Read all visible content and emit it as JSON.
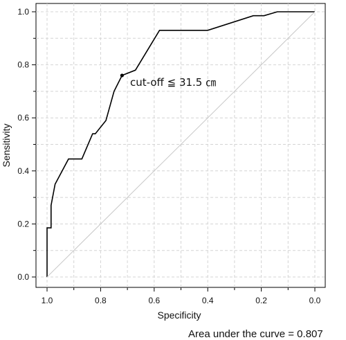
{
  "chart_data": {
    "type": "line",
    "title": "",
    "xlabel": "Specificity",
    "ylabel": "Sensitivity",
    "x_reversed": true,
    "xlim": [
      1.0,
      0.0
    ],
    "ylim": [
      0.0,
      1.0
    ],
    "x_ticks": [
      1.0,
      0.8,
      0.6,
      0.4,
      0.2,
      0.0
    ],
    "x_tick_labels": [
      "1.0",
      "0.8",
      "0.6",
      "0.4",
      "0.2",
      "0.0"
    ],
    "y_ticks": [
      0.0,
      0.2,
      0.4,
      0.6,
      0.8,
      1.0
    ],
    "y_tick_labels": [
      "0.0",
      "0.2",
      "0.4",
      "0.6",
      "0.8",
      "1.0"
    ],
    "grid": true,
    "series": [
      {
        "style": "solid",
        "color": "#000000",
        "x": [
          1.0,
          1.0,
          0.985,
          0.985,
          0.97,
          0.97,
          0.92,
          0.87,
          0.83,
          0.82,
          0.78,
          0.75,
          0.72,
          0.67,
          0.58,
          0.4,
          0.23,
          0.19,
          0.14,
          0.0
        ],
        "y": [
          0.0,
          0.185,
          0.185,
          0.27,
          0.35,
          0.35,
          0.445,
          0.445,
          0.54,
          0.54,
          0.59,
          0.7,
          0.76,
          0.78,
          0.93,
          0.93,
          0.985,
          0.985,
          1.0,
          1.0
        ]
      },
      {
        "style": "reference",
        "color": "#c8c8c8",
        "x": [
          1.0,
          0.0
        ],
        "y": [
          0.0,
          1.0
        ]
      }
    ],
    "cutoff_point": {
      "x": 0.72,
      "y": 0.76
    },
    "annotation": "cut-off ≦ 31.5 ㎝",
    "auc_text": "Area under the curve = 0.807"
  }
}
